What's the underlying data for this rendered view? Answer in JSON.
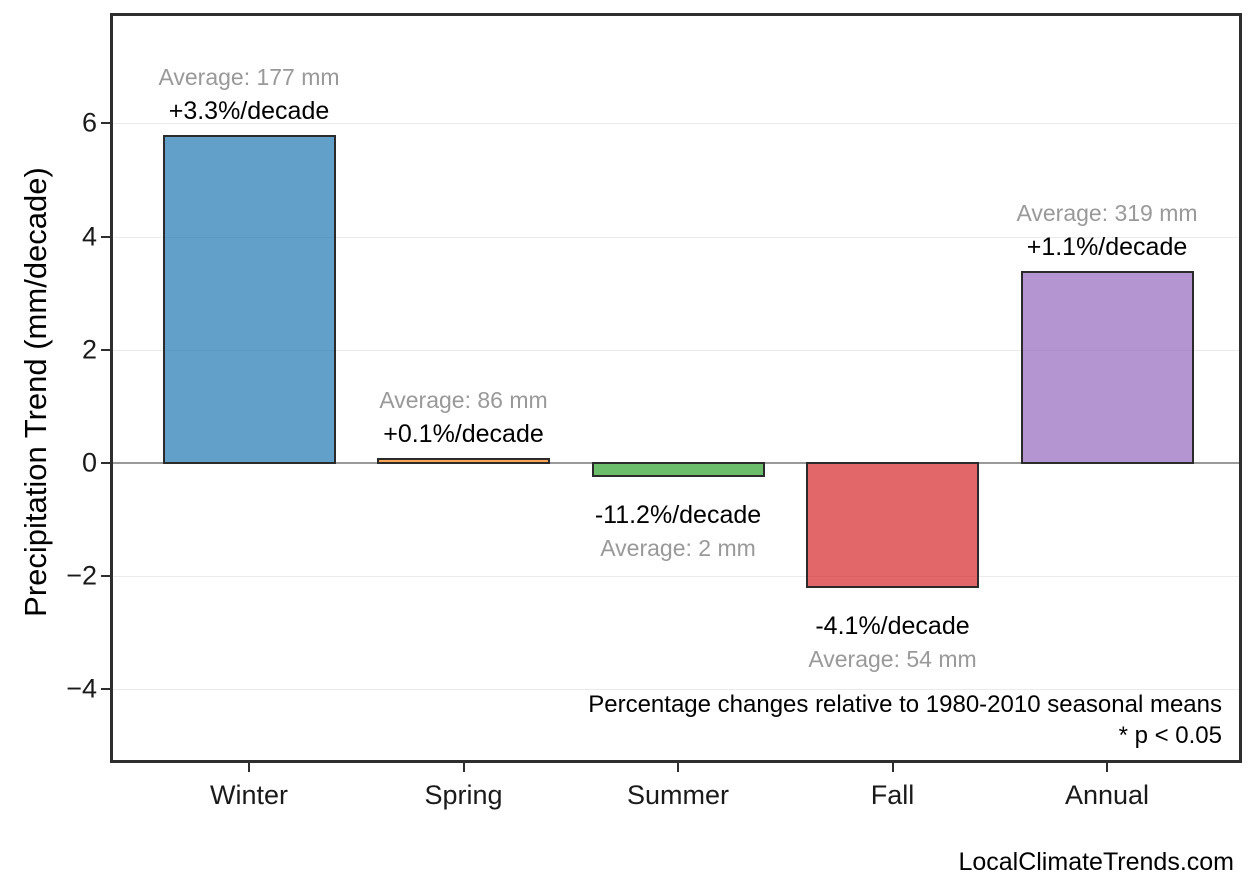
{
  "page": {
    "footer": "LocalClimateTrends.com",
    "background": "#ffffff"
  },
  "chart_data": {
    "type": "bar",
    "title": "",
    "xlabel": "",
    "ylabel": "Precipitation Trend (mm/decade)",
    "categories": [
      "Winter",
      "Spring",
      "Summer",
      "Fall",
      "Annual"
    ],
    "values": [
      5.8,
      0.09,
      -0.25,
      -2.2,
      3.4
    ],
    "averages_mm": [
      177,
      86,
      2,
      54,
      319
    ],
    "trend_pct_per_decade": [
      3.3,
      0.1,
      -11.2,
      -4.1,
      1.1
    ],
    "average_labels": [
      "Average: 177 mm",
      "Average: 86 mm",
      "Average: 2 mm",
      "Average: 54 mm",
      "Average: 319 mm"
    ],
    "trend_labels": [
      "+3.3%/decade",
      "+0.1%/decade",
      "-11.2%/decade",
      "-4.1%/decade",
      "+1.1%/decade"
    ],
    "bar_colors": [
      "rgba(31,119,180,0.7)",
      "rgba(255,127,14,0.7)",
      "rgba(44,160,44,0.7)",
      "rgba(214,39,40,0.7)",
      "rgba(148,103,189,0.7)"
    ],
    "bar_colors_hex": [
      "#62A0CB",
      "#FFA556",
      "#6BBD6B",
      "#E26869",
      "#B495D1"
    ],
    "bar_edge_color": "#2b2b2b",
    "yticks": [
      6,
      4,
      2,
      0,
      -2,
      -4
    ],
    "ytick_labels": [
      "6",
      "4",
      "2",
      "0",
      "−2",
      "−4"
    ],
    "ylim": [
      -5.3,
      7.9
    ],
    "grid": "horizontal major gridlines, light gray; gray zero line",
    "legend": "none",
    "zero_line_color": "#9a9a9a",
    "label_colors": {
      "average": "#999999",
      "trend": "#000000"
    },
    "annotations": [
      "Percentage changes relative to 1980-2010 seasonal means",
      "* p < 0.05"
    ]
  }
}
